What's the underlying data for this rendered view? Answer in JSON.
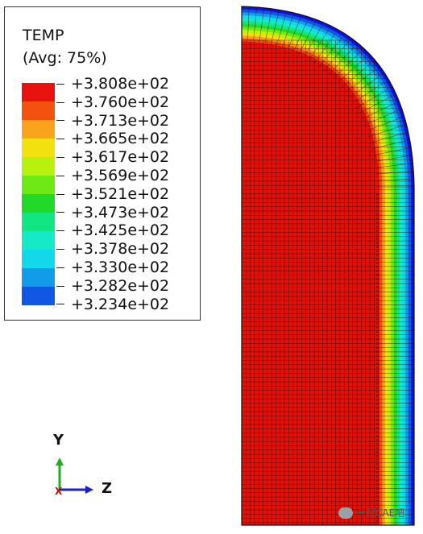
{
  "legend": {
    "title": "TEMP",
    "subtitle": "(Avg: 75%)",
    "levels": [
      {
        "label": "+3.808e+02",
        "color": "#e8120f"
      },
      {
        "label": "+3.760e+02",
        "color": "#f2520e"
      },
      {
        "label": "+3.713e+02",
        "color": "#f9a21b"
      },
      {
        "label": "+3.665e+02",
        "color": "#f2e10e"
      },
      {
        "label": "+3.617e+02",
        "color": "#b8f010"
      },
      {
        "label": "+3.569e+02",
        "color": "#6ee914"
      },
      {
        "label": "+3.521e+02",
        "color": "#22d92a"
      },
      {
        "label": "+3.473e+02",
        "color": "#12e682"
      },
      {
        "label": "+3.425e+02",
        "color": "#14eac8"
      },
      {
        "label": "+3.378e+02",
        "color": "#12d8ea"
      },
      {
        "label": "+3.330e+02",
        "color": "#129be8"
      },
      {
        "label": "+3.282e+02",
        "color": "#1058e4"
      },
      {
        "label": "+3.234e+02",
        "color": "#1510e2"
      }
    ]
  },
  "triad": {
    "y_label": "Y",
    "z_label": "Z"
  },
  "watermark": {
    "text": "一起CAE吧"
  },
  "colors": {
    "mesh_line": "#3a0000",
    "core": "#e11208",
    "outline": "#111111"
  }
}
